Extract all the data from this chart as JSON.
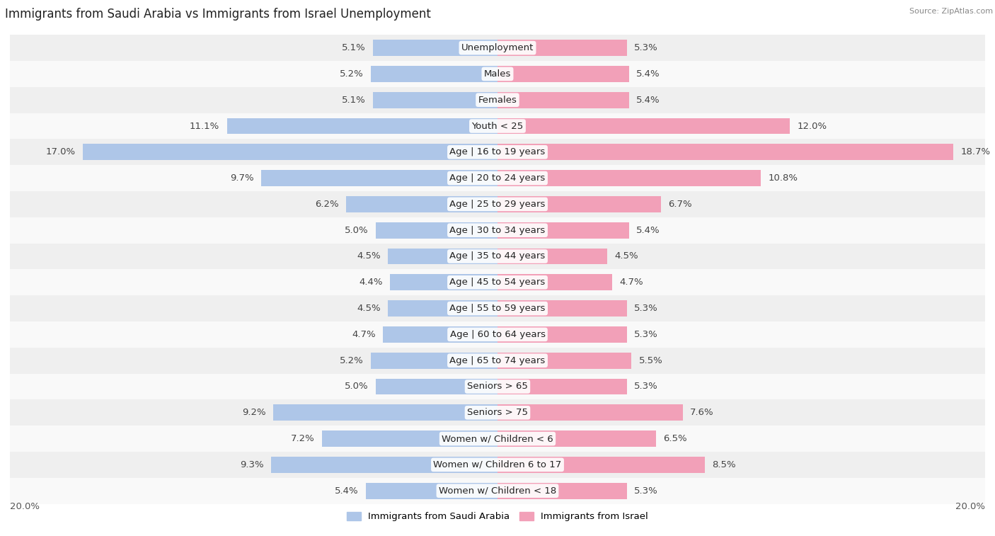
{
  "title": "Immigrants from Saudi Arabia vs Immigrants from Israel Unemployment",
  "source": "Source: ZipAtlas.com",
  "categories": [
    "Unemployment",
    "Males",
    "Females",
    "Youth < 25",
    "Age | 16 to 19 years",
    "Age | 20 to 24 years",
    "Age | 25 to 29 years",
    "Age | 30 to 34 years",
    "Age | 35 to 44 years",
    "Age | 45 to 54 years",
    "Age | 55 to 59 years",
    "Age | 60 to 64 years",
    "Age | 65 to 74 years",
    "Seniors > 65",
    "Seniors > 75",
    "Women w/ Children < 6",
    "Women w/ Children 6 to 17",
    "Women w/ Children < 18"
  ],
  "saudi_values": [
    5.1,
    5.2,
    5.1,
    11.1,
    17.0,
    9.7,
    6.2,
    5.0,
    4.5,
    4.4,
    4.5,
    4.7,
    5.2,
    5.0,
    9.2,
    7.2,
    9.3,
    5.4
  ],
  "israel_values": [
    5.3,
    5.4,
    5.4,
    12.0,
    18.7,
    10.8,
    6.7,
    5.4,
    4.5,
    4.7,
    5.3,
    5.3,
    5.5,
    5.3,
    7.6,
    6.5,
    8.5,
    5.3
  ],
  "saudi_color": "#aec6e8",
  "israel_color": "#f2a0b8",
  "row_bg_even": "#efefef",
  "row_bg_odd": "#f9f9f9",
  "max_value": 20.0,
  "label_fontsize": 9.5,
  "title_fontsize": 12,
  "legend_saudi": "Immigrants from Saudi Arabia",
  "legend_israel": "Immigrants from Israel"
}
